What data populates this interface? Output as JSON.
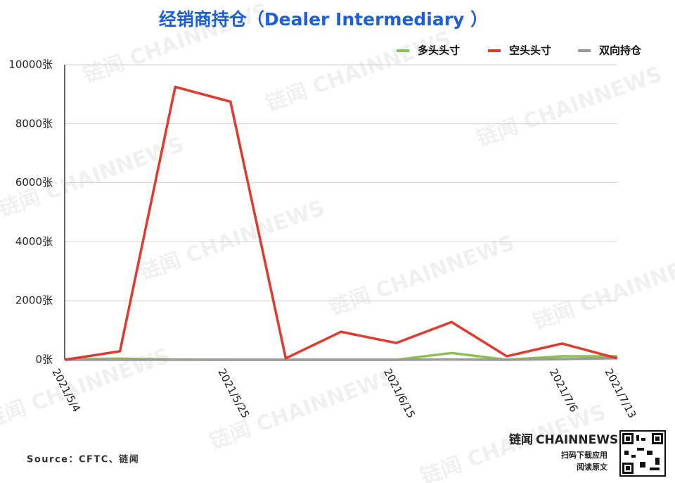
{
  "chart_data": {
    "type": "line",
    "title": "经销商持仓（Dealer Intermediary ）",
    "categories": [
      "2021/5/4",
      null,
      null,
      "2021/5/25",
      null,
      null,
      "2021/6/15",
      null,
      null,
      "2021/7/6",
      "2021/7/13"
    ],
    "series": [
      {
        "name": "多头头寸",
        "color": "#8cc152",
        "values": [
          20,
          40,
          10,
          0,
          0,
          0,
          0,
          230,
          0,
          120,
          120
        ]
      },
      {
        "name": "空头头寸",
        "color": "#e03a2e",
        "values": [
          0,
          290,
          9250,
          8750,
          50,
          950,
          570,
          1280,
          120,
          550,
          50
        ]
      },
      {
        "name": "双向持仓",
        "color": "#9a9a9a",
        "values": [
          0,
          0,
          0,
          0,
          0,
          0,
          0,
          10,
          0,
          20,
          60
        ]
      }
    ],
    "ylim": [
      0,
      10000
    ],
    "yticks": [
      {
        "value": 0,
        "label": "0张"
      },
      {
        "value": 2000,
        "label": "2000张"
      },
      {
        "value": 4000,
        "label": "4000张"
      },
      {
        "value": 6000,
        "label": "6000张"
      },
      {
        "value": 8000,
        "label": "8000张"
      },
      {
        "value": 10000,
        "label": "10000张"
      }
    ],
    "grid": true,
    "legend": "top-right",
    "source": "Source：CFTC、链闻",
    "watermark": "链闻 CHAINNEWS",
    "brand": {
      "name": "链闻",
      "name_en": "CHAINNEWS",
      "line1": "扫码下载应用",
      "line2": "阅读原文"
    }
  }
}
